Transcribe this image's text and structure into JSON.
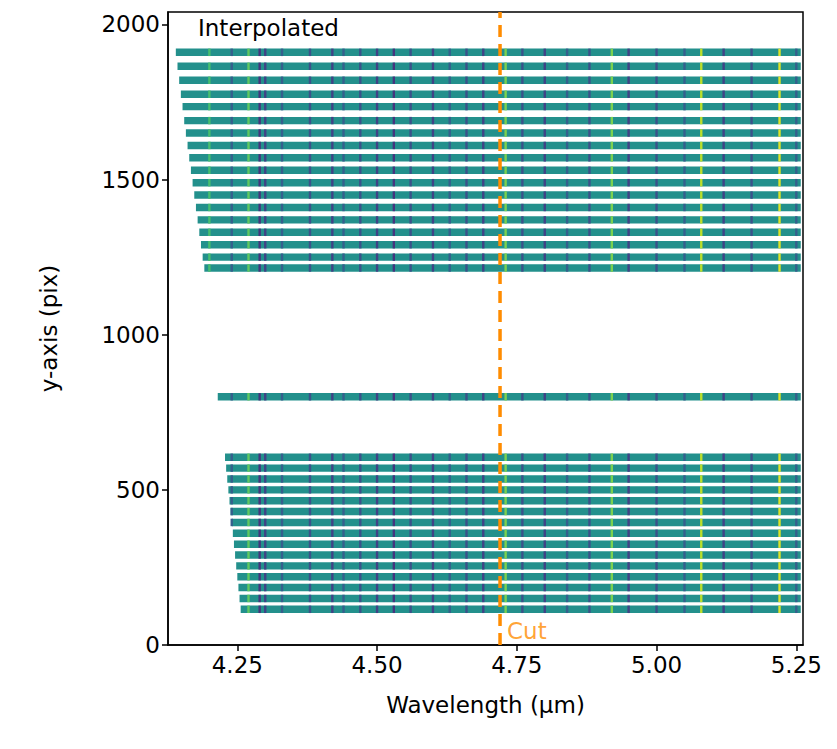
{
  "chart_data": {
    "type": "heatmap",
    "text": "Interpolated",
    "xlabel": "Wavelength (μm)",
    "ylabel": "y-axis (pix)",
    "xlim": [
      4.126,
      5.262
    ],
    "xticks": [
      4.25,
      {
        "value": 4.5,
        "label": "4.50"
      },
      4.75,
      {
        "value": 5.0,
        "label": "5.00"
      },
      5.25
    ],
    "ylim": [
      0,
      2040
    ],
    "yticks": [
      0,
      500,
      1000,
      1500,
      2000
    ],
    "value_range": [
      0,
      1
    ],
    "base_value": 0.5,
    "strip_height": 24,
    "strips": [
      {
        "y": 1910,
        "x_start": 4.14,
        "x_end": 5.258
      },
      {
        "y": 1865,
        "x_start": 4.143,
        "x_end": 5.258
      },
      {
        "y": 1820,
        "x_start": 4.146,
        "x_end": 5.258
      },
      {
        "y": 1775,
        "x_start": 4.149,
        "x_end": 5.258
      },
      {
        "y": 1735,
        "x_start": 4.152,
        "x_end": 5.258
      },
      {
        "y": 1690,
        "x_start": 4.155,
        "x_end": 5.258
      },
      {
        "y": 1650,
        "x_start": 4.158,
        "x_end": 5.258
      },
      {
        "y": 1610,
        "x_start": 4.161,
        "x_end": 5.258
      },
      {
        "y": 1570,
        "x_start": 4.164,
        "x_end": 5.258
      },
      {
        "y": 1530,
        "x_start": 4.167,
        "x_end": 5.258
      },
      {
        "y": 1490,
        "x_start": 4.17,
        "x_end": 5.258
      },
      {
        "y": 1450,
        "x_start": 4.173,
        "x_end": 5.258
      },
      {
        "y": 1410,
        "x_start": 4.176,
        "x_end": 5.258
      },
      {
        "y": 1370,
        "x_start": 4.179,
        "x_end": 5.258
      },
      {
        "y": 1330,
        "x_start": 4.182,
        "x_end": 5.258
      },
      {
        "y": 1290,
        "x_start": 4.185,
        "x_end": 5.258
      },
      {
        "y": 1250,
        "x_start": 4.188,
        "x_end": 5.258
      },
      {
        "y": 1215,
        "x_start": 4.191,
        "x_end": 5.258
      },
      {
        "y": 800,
        "x_start": 4.215,
        "x_end": 5.258
      },
      {
        "y": 605,
        "x_start": 4.228,
        "x_end": 5.258
      },
      {
        "y": 570,
        "x_start": 4.23,
        "x_end": 5.258
      },
      {
        "y": 535,
        "x_start": 4.232,
        "x_end": 5.258
      },
      {
        "y": 500,
        "x_start": 4.234,
        "x_end": 5.258
      },
      {
        "y": 465,
        "x_start": 4.236,
        "x_end": 5.258
      },
      {
        "y": 430,
        "x_start": 4.238,
        "x_end": 5.258
      },
      {
        "y": 395,
        "x_start": 4.24,
        "x_end": 5.258
      },
      {
        "y": 360,
        "x_start": 4.242,
        "x_end": 5.258
      },
      {
        "y": 325,
        "x_start": 4.244,
        "x_end": 5.258
      },
      {
        "y": 290,
        "x_start": 4.246,
        "x_end": 5.258
      },
      {
        "y": 255,
        "x_start": 4.248,
        "x_end": 5.258
      },
      {
        "y": 220,
        "x_start": 4.25,
        "x_end": 5.258
      },
      {
        "y": 185,
        "x_start": 4.252,
        "x_end": 5.258
      },
      {
        "y": 150,
        "x_start": 4.254,
        "x_end": 5.258
      },
      {
        "y": 115,
        "x_start": 4.256,
        "x_end": 5.258
      }
    ],
    "lines": [
      {
        "x": 4.2,
        "value": 0.7
      },
      {
        "x": 4.24,
        "value": 0.3
      },
      {
        "x": 4.27,
        "value": 0.75
      },
      {
        "x": 4.29,
        "value": 0.15
      },
      {
        "x": 4.3,
        "value": 0.2
      },
      {
        "x": 4.33,
        "value": 0.3
      },
      {
        "x": 4.38,
        "value": 0.25
      },
      {
        "x": 4.42,
        "value": 0.2
      },
      {
        "x": 4.44,
        "value": 0.3
      },
      {
        "x": 4.47,
        "value": 0.25
      },
      {
        "x": 4.5,
        "value": 0.2
      },
      {
        "x": 4.53,
        "value": 0.15
      },
      {
        "x": 4.56,
        "value": 0.25
      },
      {
        "x": 4.6,
        "value": 0.2
      },
      {
        "x": 4.63,
        "value": 0.3
      },
      {
        "x": 4.66,
        "value": 0.25
      },
      {
        "x": 4.69,
        "value": 0.2
      },
      {
        "x": 4.73,
        "value": 0.8
      },
      {
        "x": 4.76,
        "value": 0.25
      },
      {
        "x": 4.8,
        "value": 0.2
      },
      {
        "x": 4.84,
        "value": 0.3
      },
      {
        "x": 4.88,
        "value": 0.25
      },
      {
        "x": 4.92,
        "value": 0.8
      },
      {
        "x": 4.95,
        "value": 0.2
      },
      {
        "x": 5.0,
        "value": 0.25
      },
      {
        "x": 5.05,
        "value": 0.3
      },
      {
        "x": 5.08,
        "value": 0.9
      },
      {
        "x": 5.12,
        "value": 0.2
      },
      {
        "x": 5.17,
        "value": 0.25
      },
      {
        "x": 5.22,
        "value": 0.95
      },
      {
        "x": 5.25,
        "value": 0.3
      }
    ],
    "cut": {
      "x": 4.72,
      "label": "Cut",
      "color": "#ff8c00",
      "line_style": "dashed"
    }
  }
}
